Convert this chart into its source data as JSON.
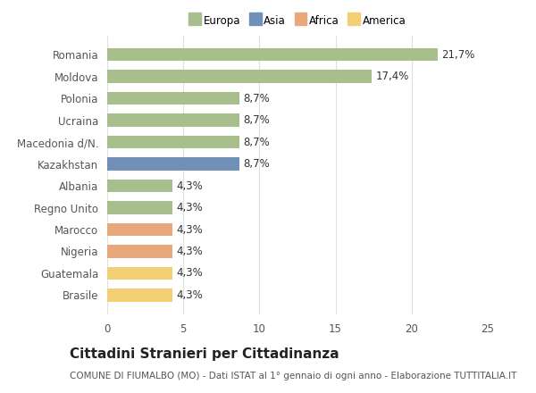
{
  "categories": [
    "Brasile",
    "Guatemala",
    "Nigeria",
    "Marocco",
    "Regno Unito",
    "Albania",
    "Kazakhstan",
    "Macedonia d/N.",
    "Ucraina",
    "Polonia",
    "Moldova",
    "Romania"
  ],
  "values": [
    4.3,
    4.3,
    4.3,
    4.3,
    4.3,
    4.3,
    8.7,
    8.7,
    8.7,
    8.7,
    17.4,
    21.7
  ],
  "labels": [
    "4,3%",
    "4,3%",
    "4,3%",
    "4,3%",
    "4,3%",
    "4,3%",
    "8,7%",
    "8,7%",
    "8,7%",
    "8,7%",
    "17,4%",
    "21,7%"
  ],
  "colors": [
    "#f2cf72",
    "#f2cf72",
    "#e8a87c",
    "#e8a87c",
    "#a8be8c",
    "#a8be8c",
    "#7090b8",
    "#a8be8c",
    "#a8be8c",
    "#a8be8c",
    "#a8be8c",
    "#a8be8c"
  ],
  "legend_labels": [
    "Europa",
    "Asia",
    "Africa",
    "America"
  ],
  "legend_colors": [
    "#a8be8c",
    "#7090b8",
    "#e8a87c",
    "#f2cf72"
  ],
  "title": "Cittadini Stranieri per Cittadinanza",
  "subtitle": "COMUNE DI FIUMALBO (MO) - Dati ISTAT al 1° gennaio di ogni anno - Elaborazione TUTTITALIA.IT",
  "xlim": [
    0,
    25
  ],
  "xticks": [
    0,
    5,
    10,
    15,
    20,
    25
  ],
  "bg_color": "#ffffff",
  "plot_bg_color": "#ffffff",
  "grid_color": "#e0e0e0",
  "label_fontsize": 8.5,
  "tick_fontsize": 8.5,
  "title_fontsize": 11,
  "subtitle_fontsize": 7.5
}
